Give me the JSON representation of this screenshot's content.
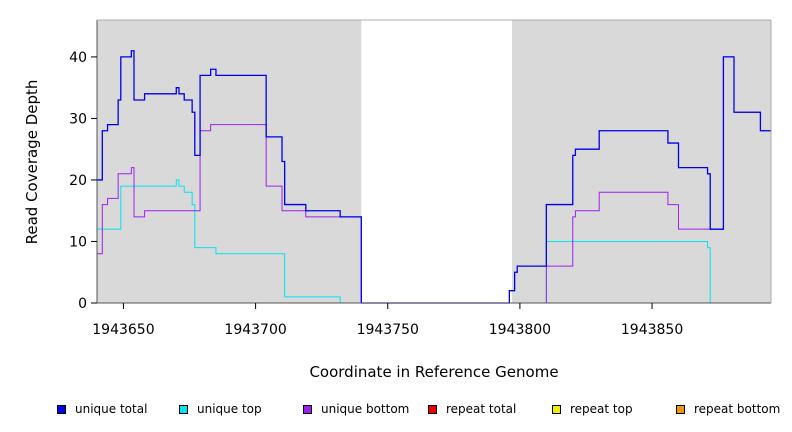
{
  "chart_data": {
    "type": "line",
    "title": "",
    "xlabel": "Coordinate in Reference Genome",
    "ylabel": "Read Coverage Depth",
    "xlim": [
      1943640,
      1943895
    ],
    "ylim": [
      0,
      46
    ],
    "x_ticks": [
      1943650,
      1943700,
      1943750,
      1943800,
      1943850
    ],
    "y_ticks": [
      0,
      10,
      20,
      30,
      40
    ],
    "shaded_regions": [
      [
        1943640,
        1943740
      ],
      [
        1943797,
        1943895
      ]
    ],
    "gap_region": [
      1943740,
      1943797
    ],
    "grid": false,
    "legend_position": "bottom",
    "series": [
      {
        "name": "unique total",
        "color": "#0000ee",
        "points": [
          [
            1943640,
            20
          ],
          [
            1943642,
            28
          ],
          [
            1943644,
            29
          ],
          [
            1943648,
            33
          ],
          [
            1943649,
            40
          ],
          [
            1943653,
            41
          ],
          [
            1943654,
            33
          ],
          [
            1943658,
            34
          ],
          [
            1943670,
            35
          ],
          [
            1943671,
            34
          ],
          [
            1943673,
            33
          ],
          [
            1943676,
            31
          ],
          [
            1943677,
            24
          ],
          [
            1943679,
            37
          ],
          [
            1943683,
            38
          ],
          [
            1943685,
            37
          ],
          [
            1943704,
            27
          ],
          [
            1943710,
            23
          ],
          [
            1943711,
            16
          ],
          [
            1943719,
            15
          ],
          [
            1943732,
            14
          ],
          [
            1943740,
            0
          ],
          [
            1943796,
            2
          ],
          [
            1943798,
            5
          ],
          [
            1943799,
            6
          ],
          [
            1943810,
            16
          ],
          [
            1943820,
            24
          ],
          [
            1943821,
            25
          ],
          [
            1943830,
            28
          ],
          [
            1943856,
            26
          ],
          [
            1943860,
            22
          ],
          [
            1943871,
            21
          ],
          [
            1943872,
            12
          ],
          [
            1943877,
            40
          ],
          [
            1943881,
            31
          ],
          [
            1943891,
            28
          ],
          [
            1943895,
            28
          ]
        ]
      },
      {
        "name": "unique top",
        "color": "#00e5ee",
        "points": [
          [
            1943640,
            12
          ],
          [
            1943649,
            19
          ],
          [
            1943670,
            20
          ],
          [
            1943671,
            19
          ],
          [
            1943673,
            18
          ],
          [
            1943676,
            16
          ],
          [
            1943677,
            9
          ],
          [
            1943685,
            8
          ],
          [
            1943711,
            1
          ],
          [
            1943732,
            0
          ],
          [
            1943810,
            10
          ],
          [
            1943871,
            9
          ],
          [
            1943872,
            0
          ],
          [
            1943895,
            0
          ]
        ]
      },
      {
        "name": "unique bottom",
        "color": "#a020f0",
        "points": [
          [
            1943640,
            8
          ],
          [
            1943642,
            16
          ],
          [
            1943644,
            17
          ],
          [
            1943648,
            21
          ],
          [
            1943653,
            22
          ],
          [
            1943654,
            14
          ],
          [
            1943658,
            15
          ],
          [
            1943679,
            28
          ],
          [
            1943683,
            29
          ],
          [
            1943704,
            19
          ],
          [
            1943710,
            15
          ],
          [
            1943719,
            14
          ],
          [
            1943732,
            14
          ],
          [
            1943740,
            0
          ],
          [
            1943810,
            6
          ],
          [
            1943820,
            14
          ],
          [
            1943821,
            15
          ],
          [
            1943830,
            18
          ],
          [
            1943856,
            16
          ],
          [
            1943860,
            12
          ],
          [
            1943872,
            12
          ],
          [
            1943877,
            40
          ],
          [
            1943881,
            31
          ],
          [
            1943891,
            28
          ],
          [
            1943895,
            28
          ]
        ]
      },
      {
        "name": "repeat total",
        "color": "#ee0000",
        "points": [
          [
            1943640,
            0
          ],
          [
            1943895,
            0
          ]
        ]
      },
      {
        "name": "repeat top",
        "color": "#eeee00",
        "points": [
          [
            1943640,
            0
          ],
          [
            1943895,
            0
          ]
        ]
      },
      {
        "name": "repeat bottom",
        "color": "#ee9a00",
        "points": [
          [
            1943640,
            0
          ],
          [
            1943895,
            0
          ]
        ]
      }
    ]
  }
}
